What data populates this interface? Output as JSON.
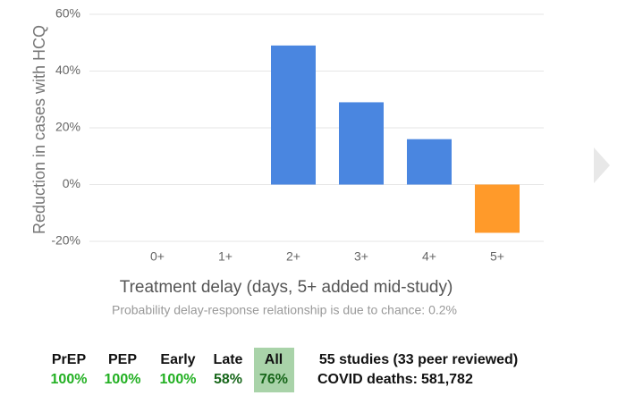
{
  "chart_data": {
    "type": "bar",
    "ylabel": "Reduction in cases with HCQ",
    "xlabel": "Treatment delay (days, 5+ added mid-study)",
    "subtitle": "Probability delay-response relationship is due to chance: 0.2%",
    "categories": [
      "0+",
      "1+",
      "2+",
      "3+",
      "4+",
      "5+"
    ],
    "values": [
      null,
      null,
      49,
      29,
      16,
      -17
    ],
    "colors": [
      "#4a86e0",
      "#4a86e0",
      "#4a86e0",
      "#4a86e0",
      "#4a86e0",
      "#ff9a2a"
    ],
    "ylim": [
      -20,
      60
    ],
    "yticks": [
      {
        "value": -20,
        "label": "-20%"
      },
      {
        "value": 0,
        "label": "0%"
      },
      {
        "value": 20,
        "label": "20%"
      },
      {
        "value": 40,
        "label": "40%"
      },
      {
        "value": 60,
        "label": "60%"
      }
    ],
    "grid": true
  },
  "summary": {
    "tabs": [
      {
        "name": "PrEP",
        "value": "100%",
        "color": "#22b022"
      },
      {
        "name": "PEP",
        "value": "100%",
        "color": "#22b022"
      },
      {
        "name": "Early",
        "value": "100%",
        "color": "#22b022"
      },
      {
        "name": "Late",
        "value": "58%",
        "color": "#17661a"
      },
      {
        "name": "All",
        "value": "76%",
        "color": "#17661a",
        "highlighted": true
      }
    ],
    "studies": "55 studies (33 peer reviewed)",
    "deaths_label": "COVID deaths:",
    "deaths_value": "581,782"
  }
}
